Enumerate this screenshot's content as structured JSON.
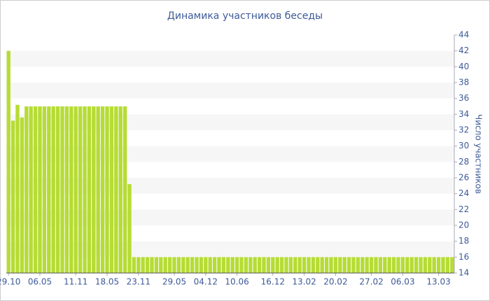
{
  "chart_data": {
    "type": "bar",
    "title": "Динамика участников беседы",
    "y_axis_label": "Число участников",
    "categories": [
      "29.10",
      null,
      null,
      null,
      null,
      null,
      null,
      "06.05",
      null,
      null,
      null,
      null,
      null,
      null,
      null,
      "11.11",
      null,
      null,
      null,
      null,
      null,
      null,
      "18.05",
      null,
      null,
      null,
      null,
      null,
      null,
      "23.11",
      null,
      null,
      null,
      null,
      null,
      null,
      null,
      "29.05",
      null,
      null,
      null,
      null,
      null,
      null,
      "04.12",
      null,
      null,
      null,
      null,
      null,
      null,
      "10.06",
      null,
      null,
      null,
      null,
      null,
      null,
      null,
      "16.12",
      null,
      null,
      null,
      null,
      null,
      null,
      "13.02",
      null,
      null,
      null,
      null,
      null,
      null,
      "20.02",
      null,
      null,
      null,
      null,
      null,
      null,
      null,
      "27.02",
      null,
      null,
      null,
      null,
      null,
      null,
      "06.03",
      null,
      null,
      null,
      null,
      null,
      null,
      null,
      "13.03",
      null,
      null,
      null
    ],
    "values": [
      42,
      33.2,
      35.2,
      33.6,
      35,
      35,
      35,
      35,
      35,
      35,
      35,
      35,
      35,
      35,
      35,
      35,
      35,
      35,
      35,
      35,
      35,
      35,
      35,
      35,
      35,
      35,
      35,
      25.2,
      16,
      16,
      16,
      16,
      16,
      16,
      16,
      16,
      16,
      16,
      16,
      16,
      16,
      16,
      16,
      16,
      16,
      16,
      16,
      16,
      16,
      16,
      16,
      16,
      16,
      16,
      16,
      16,
      16,
      16,
      16,
      16,
      16,
      16,
      16,
      16,
      16,
      16,
      16,
      16,
      16,
      16,
      16,
      16,
      16,
      16,
      16,
      16,
      16,
      16,
      16,
      16,
      16,
      16,
      16,
      16,
      16,
      16,
      16,
      16,
      16,
      16,
      16,
      16,
      16,
      16,
      16,
      16,
      16,
      16,
      16,
      16
    ],
    "color": "#b6dc35",
    "ylim": [
      14,
      44
    ],
    "yticks": [
      14,
      16,
      18,
      20,
      22,
      24,
      26,
      28,
      30,
      32,
      34,
      36,
      38,
      40,
      42,
      44
    ],
    "y_axis_side": "right",
    "grid": "bands"
  }
}
